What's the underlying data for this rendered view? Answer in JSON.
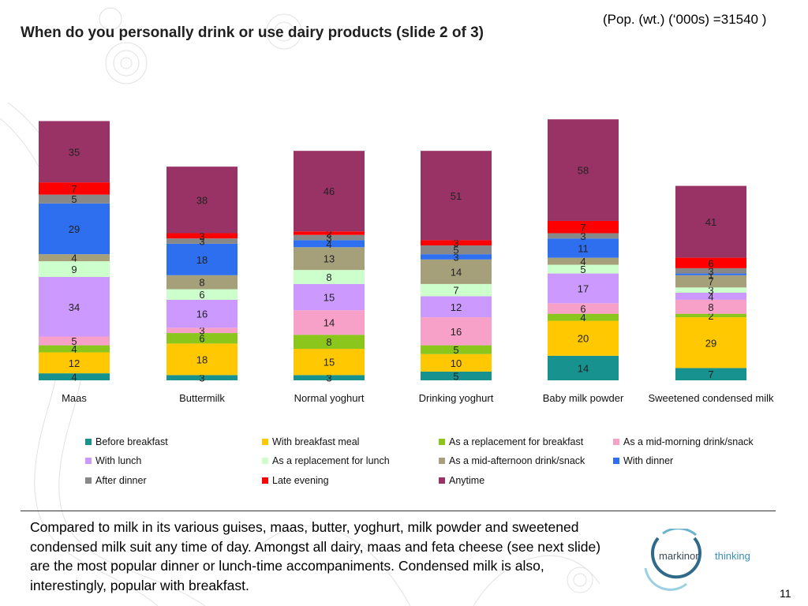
{
  "header": {
    "pop_note": "(Pop. (wt.) (‘000s) =31540 )",
    "title": "When do you personally drink or use dairy products (slide 2 of 3)"
  },
  "chart_data": {
    "type": "bar",
    "stacked": true,
    "title": "",
    "xlabel": "",
    "ylabel": "",
    "legend_position": "bottom",
    "categories": [
      "Maas",
      "Buttermilk",
      "Normal yoghurt",
      "Drinking yoghurt",
      "Baby milk powder",
      "Sweetened condensed milk"
    ],
    "series": [
      {
        "name": "Before breakfast",
        "color": "#17928f",
        "values": [
          4,
          3,
          3,
          5,
          14,
          7
        ]
      },
      {
        "name": "With breakfast meal",
        "color": "#ffc800",
        "values": [
          12,
          18,
          15,
          10,
          20,
          29
        ]
      },
      {
        "name": "As a replacement for breakfast",
        "color": "#8ac61c",
        "values": [
          4,
          6,
          8,
          5,
          4,
          2
        ]
      },
      {
        "name": "As a mid-morning drink/snack",
        "color": "#f7a0c8",
        "values": [
          5,
          3,
          14,
          16,
          6,
          8
        ]
      },
      {
        "name": "With lunch",
        "color": "#cc99ff",
        "values": [
          34,
          16,
          15,
          12,
          17,
          4
        ]
      },
      {
        "name": "As a replacement for lunch",
        "color": "#ccffcc",
        "values": [
          9,
          6,
          8,
          7,
          5,
          3
        ]
      },
      {
        "name": "As a mid-afternoon drink/snack",
        "color": "#a6a07a",
        "values": [
          4,
          8,
          13,
          14,
          4,
          7
        ]
      },
      {
        "name": "With dinner",
        "color": "#2e6ff0",
        "values": [
          29,
          18,
          4,
          3,
          11,
          1
        ]
      },
      {
        "name": "After dinner",
        "color": "#888888",
        "values": [
          5,
          3,
          3,
          5,
          3,
          3
        ]
      },
      {
        "name": "Late evening",
        "color": "#ff0000",
        "values": [
          7,
          3,
          2,
          3,
          7,
          6
        ]
      },
      {
        "name": "Anytime",
        "color": "#993366",
        "values": [
          35,
          38,
          46,
          51,
          58,
          41
        ]
      }
    ]
  },
  "footer": {
    "summary": "Compared to milk in its various guises, maas, butter, yoghurt, milk powder and sweetened condensed milk suit any time of day. Amongst all dairy, maas and feta cheese (see next slide) are the most popular dinner or lunch-time accompaniments. Condensed milk is also, interestingly, popular with breakfast.",
    "logo_name": "markinor",
    "logo_tagline": "thinking",
    "page_number": "11"
  }
}
